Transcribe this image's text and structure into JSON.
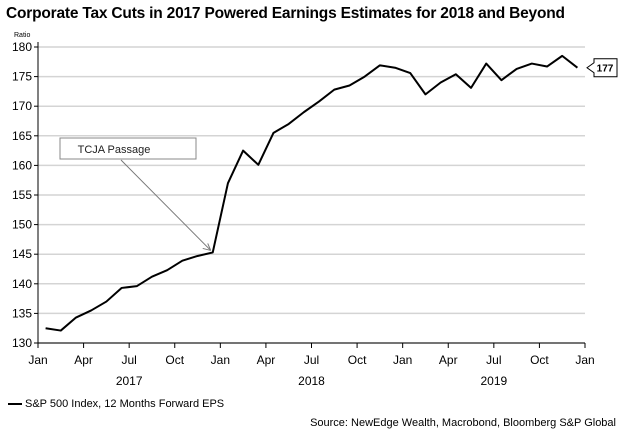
{
  "chart_data": {
    "type": "line",
    "title": "Corporate Tax Cuts in 2017 Powered Earnings Estimates for 2018 and Beyond",
    "ylabel": "Ratio",
    "ylim": [
      130,
      180
    ],
    "yticks": [
      130,
      135,
      140,
      145,
      150,
      155,
      160,
      165,
      170,
      175,
      180
    ],
    "xlim": [
      "2017-01",
      "2020-01"
    ],
    "xtick_labels": [
      "Jan",
      "Apr",
      "Jul",
      "Oct",
      "Jan",
      "Apr",
      "Jul",
      "Oct",
      "Jan",
      "Apr",
      "Jul",
      "Oct",
      "Jan"
    ],
    "year_labels": [
      "2017",
      "2018",
      "2019"
    ],
    "grid": true,
    "legend_position": "bottom-left",
    "series": [
      {
        "name": "S&P 500 Index, 12 Months Forward EPS",
        "color": "#000000",
        "x": [
          "2017-01",
          "2017-02",
          "2017-03",
          "2017-04",
          "2017-05",
          "2017-06",
          "2017-07",
          "2017-08",
          "2017-09",
          "2017-10",
          "2017-11",
          "2017-12",
          "2018-01",
          "2018-02",
          "2018-03",
          "2018-04",
          "2018-05",
          "2018-06",
          "2018-07",
          "2018-08",
          "2018-09",
          "2018-10",
          "2018-11",
          "2018-12",
          "2019-01",
          "2019-02",
          "2019-03",
          "2019-04",
          "2019-05",
          "2019-06",
          "2019-07",
          "2019-08",
          "2019-09",
          "2019-10",
          "2019-11",
          "2019-12"
        ],
        "values": [
          132.5,
          132.1,
          134.3,
          135.5,
          137.0,
          139.3,
          139.6,
          141.2,
          142.3,
          143.9,
          144.7,
          145.3,
          157.0,
          162.5,
          160.1,
          165.5,
          167.0,
          169.0,
          170.8,
          172.8,
          173.5,
          175.0,
          176.9,
          176.5,
          175.6,
          172.0,
          174.0,
          175.4,
          173.1,
          177.2,
          174.4,
          176.3,
          177.2,
          176.7,
          178.5,
          176.5
        ]
      }
    ],
    "last_value_label": "177",
    "annotations": [
      {
        "text": "TCJA Passage",
        "points_to": "2017-12"
      }
    ],
    "source": "Source: NewEdge Wealth, Macrobond, Bloomberg S&P Global"
  }
}
